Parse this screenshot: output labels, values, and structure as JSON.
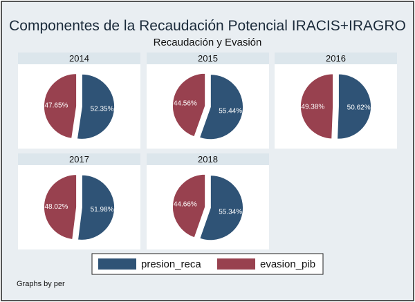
{
  "chart_data": {
    "type": "pie",
    "title": "Componentes de la Recaudación Potencial IRACIS+IRAGRO",
    "subtitle": "Recaudación y Evasión",
    "note": "Graphs by per",
    "series_names": [
      "presion_reca",
      "evasion_pib"
    ],
    "colors": {
      "presion_reca": "#2f5376",
      "evasion_pib": "#98414f",
      "panel_header": "#dce6ec",
      "outer_bg": "#e9eef2",
      "frame": "#222222"
    },
    "legend_position": "bottom",
    "panels": [
      {
        "year": "2014",
        "values": [
          52.35,
          47.65
        ],
        "labels": [
          "52.35%",
          "47.65%"
        ]
      },
      {
        "year": "2015",
        "values": [
          55.44,
          44.56
        ],
        "labels": [
          "55.44%",
          "44.56%"
        ]
      },
      {
        "year": "2016",
        "values": [
          50.62,
          49.38
        ],
        "labels": [
          "50.62%",
          "49.38%"
        ]
      },
      {
        "year": "2017",
        "values": [
          51.98,
          48.02
        ],
        "labels": [
          "51.98%",
          "48.02%"
        ]
      },
      {
        "year": "2018",
        "values": [
          55.34,
          44.66
        ],
        "labels": [
          "55.34%",
          "44.66%"
        ]
      }
    ]
  }
}
